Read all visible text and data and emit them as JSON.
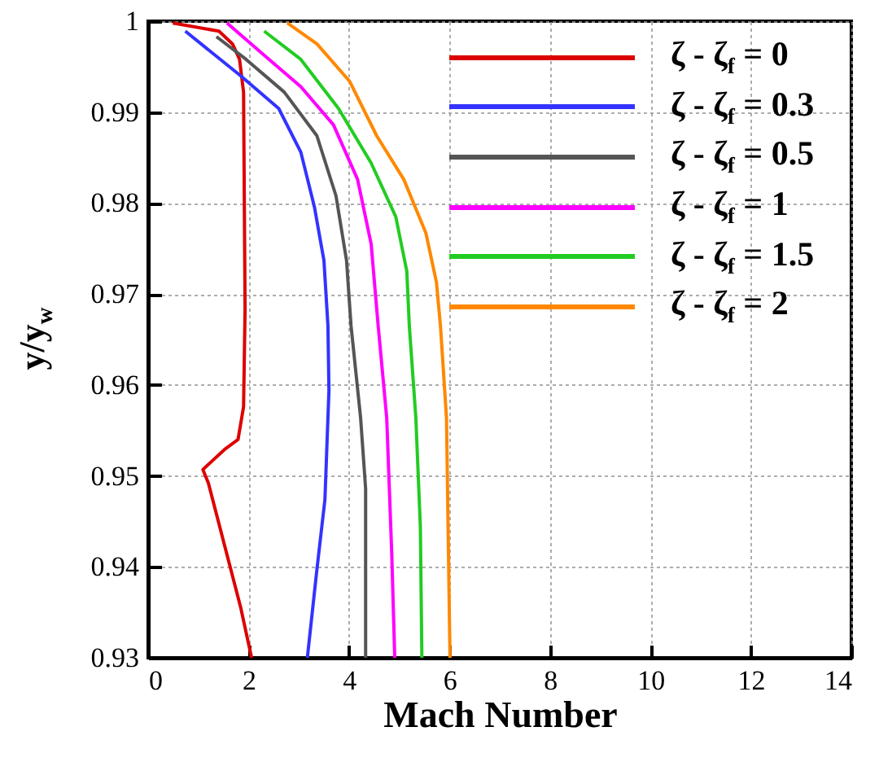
{
  "chart_data": {
    "type": "line",
    "xlabel": "Mach Number",
    "ylabel": "y/y$_{w}$",
    "xlim": [
      0,
      14
    ],
    "ylim": [
      0.93,
      1
    ],
    "xticks": [
      0,
      2,
      4,
      6,
      8,
      10,
      12,
      14
    ],
    "yticks": [
      0.93,
      0.94,
      0.95,
      0.96,
      0.97,
      0.98,
      0.99,
      1
    ],
    "grid": true,
    "legend": "top right",
    "marker": "none",
    "line_style": "solid",
    "series": [
      {
        "name": "ζ - ζ$_{f}$ = 0",
        "color": "#dd0000",
        "x": [
          0.49,
          1.41,
          1.68,
          1.82,
          1.9,
          1.93,
          1.9,
          1.79,
          1.52,
          1.09,
          1.2,
          1.84,
          2.06
        ],
        "values": [
          0.9998,
          0.9989,
          0.9975,
          0.9958,
          0.9922,
          0.9683,
          0.9576,
          0.954,
          0.9529,
          0.9507,
          0.9492,
          0.9356,
          0.93
        ]
      },
      {
        "name": "ζ - ζ$_{f}$ = 0.3",
        "color": "#3333ff",
        "x": [
          0.74,
          1.84,
          2.6,
          3.04,
          3.31,
          3.5,
          3.58,
          3.6,
          3.52,
          3.36,
          3.17
        ],
        "values": [
          0.9989,
          0.994,
          0.9904,
          0.9856,
          0.9796,
          0.9737,
          0.9665,
          0.9594,
          0.9474,
          0.9397,
          0.93
        ]
      },
      {
        "name": "ζ - ζ$_{f}$ = 0.5",
        "color": "#555555",
        "x": [
          1.36,
          1.95,
          2.71,
          3.36,
          3.74,
          3.95,
          4.04,
          4.23,
          4.33,
          4.33
        ],
        "values": [
          0.9983,
          0.9958,
          0.9922,
          0.9874,
          0.9808,
          0.9737,
          0.9665,
          0.9564,
          0.9486,
          0.93
        ]
      },
      {
        "name": "ζ - ζ$_{f}$ = 1",
        "color": "#ff00ff",
        "x": [
          1.57,
          2.28,
          3.04,
          3.69,
          4.17,
          4.44,
          4.58,
          4.75,
          4.85,
          4.91
        ],
        "values": [
          0.9998,
          0.9964,
          0.9928,
          0.9886,
          0.9826,
          0.9755,
          0.9665,
          0.9564,
          0.9415,
          0.93
        ]
      },
      {
        "name": "ζ - ζ$_{f}$ = 1.5",
        "color": "#22cc22",
        "x": [
          2.31,
          3.04,
          3.79,
          4.44,
          4.93,
          5.15,
          5.2,
          5.33,
          5.42,
          5.45
        ],
        "values": [
          0.9989,
          0.9958,
          0.9904,
          0.9844,
          0.9785,
          0.9725,
          0.9665,
          0.9564,
          0.9444,
          0.93
        ]
      },
      {
        "name": "ζ - ζ$_{f}$ = 2",
        "color": "#ff8800",
        "x": [
          2.77,
          3.36,
          4.01,
          4.55,
          5.09,
          5.53,
          5.74,
          5.82,
          5.94,
          6.01
        ],
        "values": [
          0.9998,
          0.9975,
          0.9934,
          0.9874,
          0.9826,
          0.9767,
          0.9713,
          0.9665,
          0.9564,
          0.93
        ]
      }
    ]
  }
}
